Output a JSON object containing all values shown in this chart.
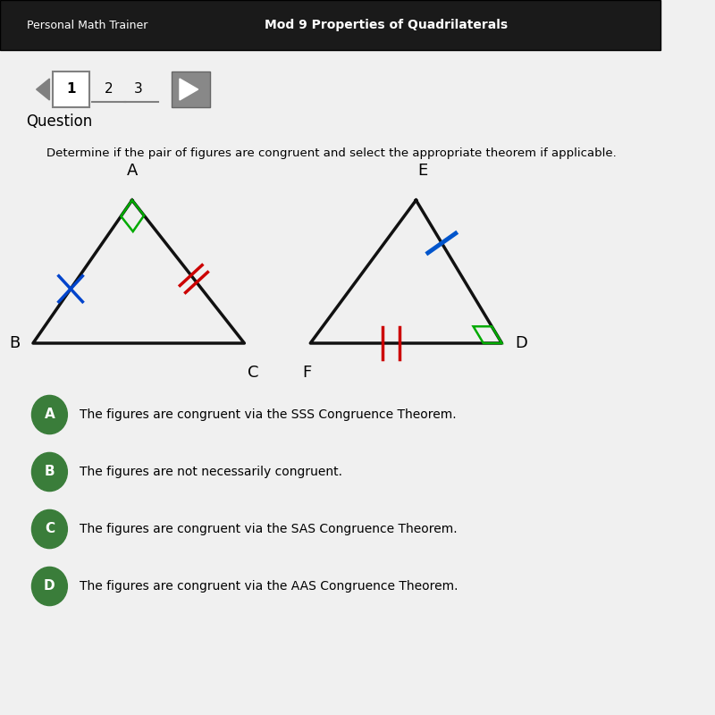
{
  "page_bg": "#f0f0f0",
  "header_bg": "#1a1a1a",
  "header_text": "Personal Math Trainer",
  "header_text2": "Mod 9 Properties of Quadrilaterals",
  "question_label": "Question",
  "question_text": "Determine if the pair of figures are congruent and select the appropriate theorem if applicable.",
  "choices": [
    {
      "label": "A",
      "text": "The figures are congruent via the SSS Congruence Theorem."
    },
    {
      "label": "B",
      "text": "The figures are not necessarily congruent."
    },
    {
      "label": "C",
      "text": "The figures are congruent via the SAS Congruence Theorem."
    },
    {
      "label": "D",
      "text": "The figures are congruent via the AAS Congruence Theorem."
    }
  ],
  "choice_color": "#3a7d3a",
  "line_color": "#111111",
  "line_width": 2.5,
  "right_angle_color1": "#00aa00",
  "right_angle_color2": "#00aa00",
  "blue_x_color": "#0044cc",
  "blue_tick_color": "#0055cc",
  "red_tick_color": "#cc0000"
}
